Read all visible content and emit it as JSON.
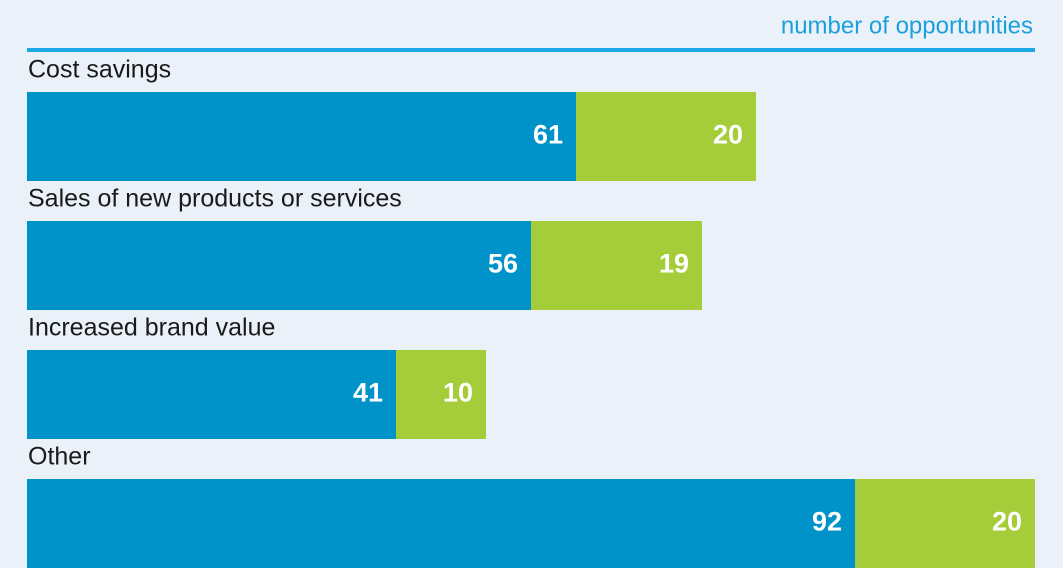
{
  "chart_data": {
    "type": "bar",
    "orientation": "horizontal",
    "stacked": true,
    "title": "number of opportunities",
    "categories": [
      "Cost savings",
      "Sales of new products or services",
      "Increased brand value",
      "Other"
    ],
    "series": [
      {
        "color": "#0093c9",
        "values": [
          61,
          56,
          41,
          92
        ]
      },
      {
        "color": "#a5cd39",
        "values": [
          20,
          19,
          10,
          20
        ]
      }
    ]
  }
}
